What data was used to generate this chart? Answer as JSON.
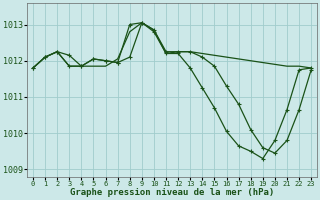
{
  "xlabel": "Graphe pression niveau de la mer (hPa)",
  "background_color": "#cce8e8",
  "grid_color": "#a0cccc",
  "line_color": "#1a5218",
  "ylim": [
    1008.8,
    1013.6
  ],
  "yticks": [
    1009,
    1010,
    1011,
    1012,
    1013
  ],
  "xlim": [
    -0.5,
    23.5
  ],
  "xticks": [
    0,
    1,
    2,
    3,
    4,
    5,
    6,
    7,
    8,
    9,
    10,
    11,
    12,
    13,
    14,
    15,
    16,
    17,
    18,
    19,
    20,
    21,
    22,
    23
  ],
  "series": [
    {
      "y": [
        1011.8,
        1012.1,
        1012.25,
        1011.85,
        1011.85,
        1012.05,
        1012.0,
        1011.95,
        1013.0,
        1013.05,
        1012.8,
        1012.2,
        1012.2,
        1011.8,
        1011.25,
        1010.7,
        1010.05,
        1009.65,
        1009.5,
        1009.3,
        1009.8,
        1010.65,
        1011.75,
        1011.8
      ],
      "marker": true
    },
    {
      "y": [
        1011.8,
        1012.1,
        1012.25,
        1011.85,
        1011.85,
        1011.85,
        1011.85,
        1012.05,
        1012.8,
        1013.05,
        1012.85,
        1012.2,
        1012.25,
        1012.25,
        1012.2,
        1012.15,
        1012.1,
        1012.05,
        1012.0,
        1011.95,
        1011.9,
        1011.85,
        1011.85,
        1011.8
      ],
      "marker": false
    },
    {
      "y": [
        1011.8,
        1012.1,
        1012.25,
        1012.15,
        1011.85,
        1012.05,
        1012.0,
        1011.95,
        1012.1,
        1013.05,
        1012.85,
        1012.25,
        1012.25,
        1012.25,
        1012.1,
        1011.85,
        1011.3,
        1010.8,
        1010.1,
        1009.6,
        1009.45,
        1009.8,
        1010.65,
        1011.75
      ],
      "marker": true
    }
  ]
}
